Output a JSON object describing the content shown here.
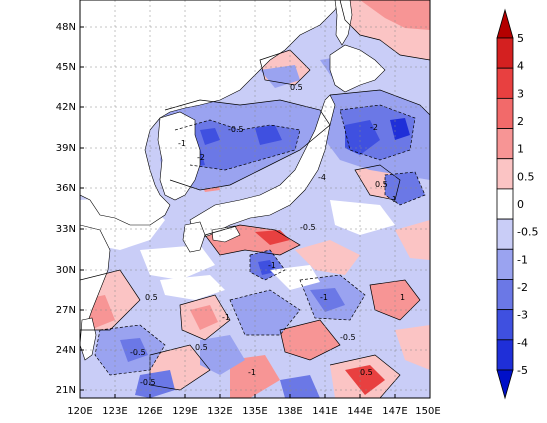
{
  "map": {
    "region": {
      "lon_range": [
        120,
        150
      ],
      "lat_range": [
        20,
        50
      ]
    },
    "lon_ticks": [
      "120E",
      "123E",
      "126E",
      "129E",
      "132E",
      "135E",
      "138E",
      "141E",
      "144E",
      "147E",
      "150E"
    ],
    "lat_ticks": [
      "21N",
      "24N",
      "27N",
      "30N",
      "33N",
      "36N",
      "39N",
      "42N",
      "45N",
      "48N"
    ],
    "gridlines": true,
    "land_color": "#ffffff",
    "contour_labels": [
      "-0.5",
      "-1",
      "-2",
      "-4",
      "0.5",
      "1",
      "-0.5",
      "-1",
      "0.5",
      "-2",
      "1",
      "-1",
      "-0.5",
      "0.5",
      "-1",
      "-0.5",
      "0.5",
      "-1",
      "0.5",
      "-0.5"
    ]
  },
  "colorbar": {
    "levels": [
      "5",
      "4",
      "3",
      "2",
      "1",
      "0.5",
      "0",
      "-0.5",
      "-1",
      "-2",
      "-3",
      "-4",
      "-5"
    ],
    "colors": [
      "#b40000",
      "#d42020",
      "#e84040",
      "#f26a6a",
      "#f79595",
      "#fbc4c4",
      "#ffffff",
      "#c9cdf7",
      "#9aa3f0",
      "#6b78e6",
      "#3f50e0",
      "#1f2fd8",
      "#0010c8"
    ]
  }
}
